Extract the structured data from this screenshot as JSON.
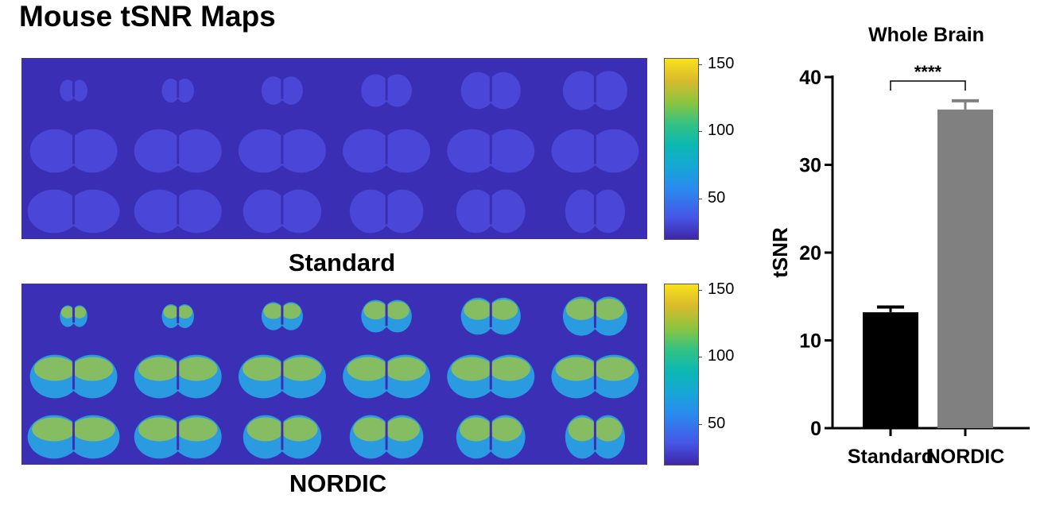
{
  "page": {
    "title": "Mouse tSNR Maps"
  },
  "maps": [
    {
      "label": "Standard",
      "colorbar": {
        "ticks": [
          150,
          100,
          50
        ],
        "range": [
          20,
          155
        ]
      },
      "colors": {
        "background": "#3a2fb4",
        "tissue": "#4a47d8"
      }
    },
    {
      "label": "NORDIC",
      "colorbar": {
        "ticks": [
          150,
          100,
          50
        ],
        "range": [
          20,
          155
        ]
      },
      "colors": {
        "background": "#3b2fb6",
        "tissue": "#2a9be0",
        "cortex": "#a6c83a"
      }
    }
  ],
  "chart_data": {
    "type": "bar",
    "title": "Whole Brain",
    "ylabel": "tSNR",
    "xlabel": "",
    "categories": [
      "Standard",
      "NORDIC"
    ],
    "values": [
      13.2,
      36.3
    ],
    "errors": [
      0.6,
      1.0
    ],
    "colors": [
      "#000000",
      "#808080"
    ],
    "ylim": [
      0,
      40
    ],
    "yticks": [
      0,
      10,
      20,
      30,
      40
    ],
    "significance": {
      "label": "****",
      "between": [
        "Standard",
        "NORDIC"
      ]
    },
    "grid": false
  }
}
